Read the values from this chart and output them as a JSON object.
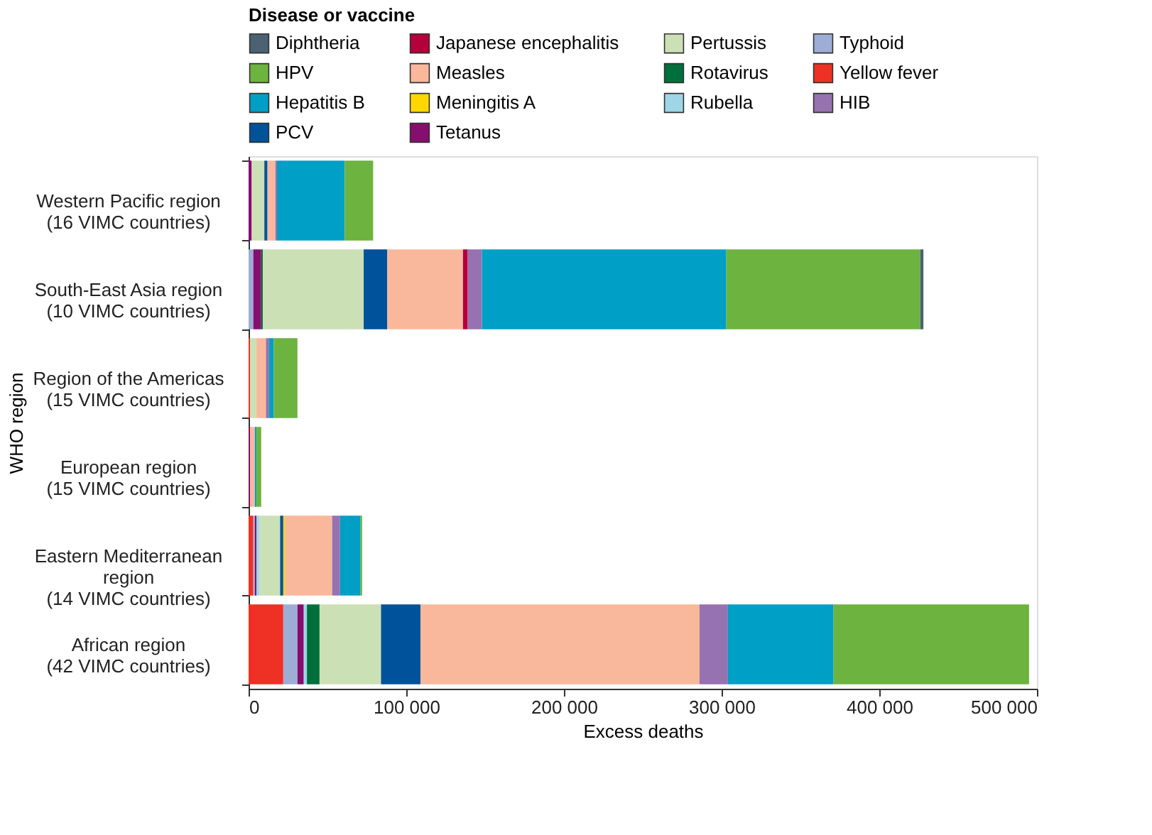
{
  "chart_data": {
    "type": "bar",
    "orientation": "horizontal",
    "stacked": true,
    "xlabel": "Excess deaths",
    "ylabel": "WHO region",
    "legend_title": "Disease or vaccine",
    "legend": "top left",
    "grid": false,
    "categories": [
      "Western Pacific region\n(16 VIMC countries)",
      "South-East Asia region\n(10 VIMC countries)",
      "Region of the Americas\n(15 VIMC countries)",
      "European region\n(15 VIMC countries)",
      "Eastern Mediterranean\nregion\n(14 VIMC countries)",
      "African region\n(42 VIMC countries)"
    ],
    "xlim": [
      0,
      500000
    ],
    "xticks": [
      0,
      {
        "value": 100000,
        "label": "100 000"
      },
      {
        "value": 200000,
        "label": "200 000"
      },
      {
        "value": 300000,
        "label": "300 000"
      },
      {
        "value": 400000,
        "label": "400 000"
      },
      {
        "value": 500000,
        "label": "500 000"
      }
    ],
    "series": [
      {
        "name": "Yellow fever",
        "color": "#ee3124",
        "values": [
          0,
          0,
          1000,
          0,
          3000,
          22000
        ]
      },
      {
        "name": "Typhoid",
        "color": "#9eadd6",
        "values": [
          0,
          3000,
          0,
          0,
          1000,
          9000
        ]
      },
      {
        "name": "Tetanus",
        "color": "#870e6e",
        "values": [
          2000,
          5000,
          0,
          1000,
          1000,
          4000
        ]
      },
      {
        "name": "Rubella",
        "color": "#9ed6e8",
        "values": [
          0,
          0,
          0,
          0,
          2000,
          2000
        ]
      },
      {
        "name": "Rotavirus",
        "color": "#006f3c",
        "values": [
          0,
          1000,
          0,
          0,
          0,
          8000
        ]
      },
      {
        "name": "Pertussis",
        "color": "#cce0b6",
        "values": [
          8000,
          64000,
          4000,
          0,
          13000,
          39000
        ]
      },
      {
        "name": "PCV",
        "color": "#00529b",
        "values": [
          2000,
          15000,
          0,
          0,
          2000,
          25000
        ]
      },
      {
        "name": "Meningitis A",
        "color": "#ffd700",
        "values": [
          0,
          0,
          0,
          0,
          1000,
          0
        ]
      },
      {
        "name": "Measles",
        "color": "#f9b89c",
        "values": [
          5000,
          48000,
          6000,
          3000,
          30000,
          177000
        ]
      },
      {
        "name": "Japanese encephalitis",
        "color": "#b5003b",
        "values": [
          0,
          3000,
          0,
          0,
          0,
          0
        ]
      },
      {
        "name": "HIB",
        "color": "#9672b0",
        "values": [
          1000,
          9000,
          2000,
          0,
          5000,
          18000
        ]
      },
      {
        "name": "Hepatitis B",
        "color": "#009fc5",
        "values": [
          43000,
          155000,
          3000,
          1000,
          13000,
          67000
        ]
      },
      {
        "name": "HPV",
        "color": "#6db33f",
        "values": [
          18000,
          123000,
          15000,
          3000,
          1000,
          124000
        ]
      },
      {
        "name": "Diphtheria",
        "color": "#4a6272",
        "values": [
          0,
          2000,
          0,
          0,
          0,
          0
        ]
      }
    ]
  }
}
